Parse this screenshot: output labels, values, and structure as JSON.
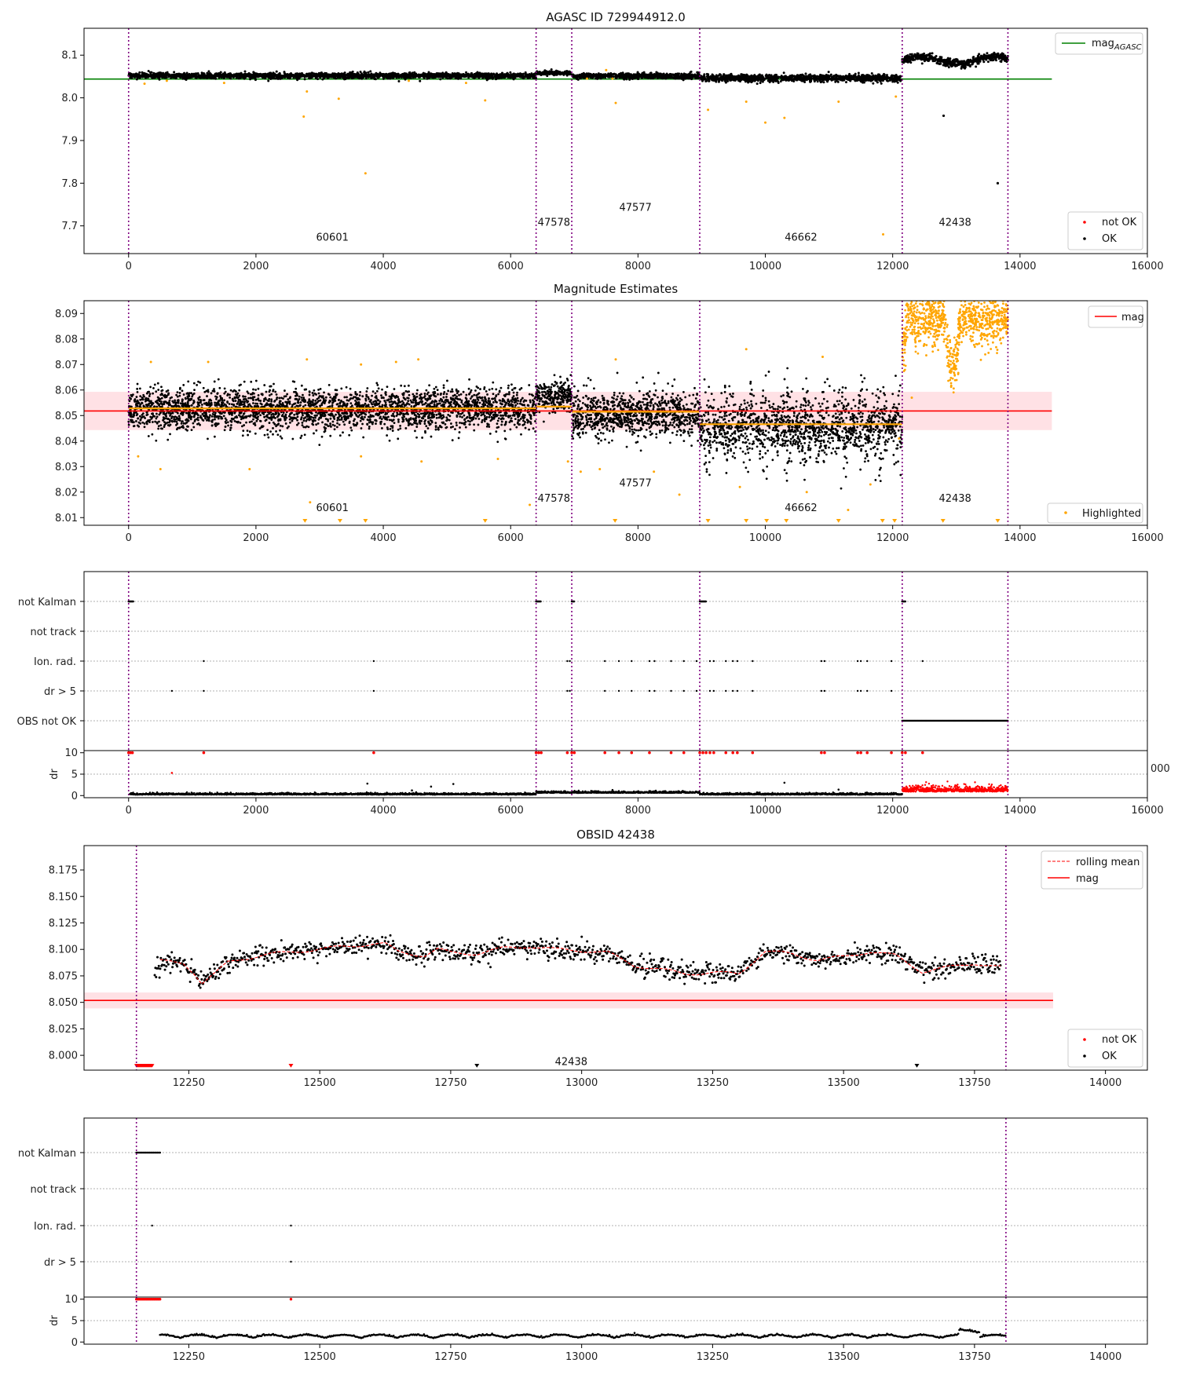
{
  "colors": {
    "ok": "#000000",
    "not_ok": "#ff0000",
    "highlight": "#ffa500",
    "agasc_line": "#008000",
    "mag_line": "#ff0000",
    "mag_band": "#ffc8cf",
    "obs_mean": "#ffa500",
    "boundary": "#800080",
    "rolling_mean": "#ff0000"
  },
  "chart_data": [
    {
      "id": "p1",
      "type": "scatter",
      "title": "AGASC ID 729944912.0",
      "xlim": [
        -700,
        16000
      ],
      "ylim": [
        7.635,
        8.163
      ],
      "xticks": [
        0,
        2000,
        4000,
        6000,
        8000,
        10000,
        12000,
        14000,
        16000
      ],
      "yticks": [
        7.7,
        7.8,
        7.9,
        8.0,
        8.1
      ],
      "ytick_decimals": 1,
      "boundaries": [
        0,
        6400,
        6960,
        8970,
        12150,
        13810
      ],
      "obs_labels": [
        {
          "text": "60601",
          "x": 3200,
          "y": 7.665
        },
        {
          "text": "47578",
          "x": 6680,
          "y": 7.7
        },
        {
          "text": "47577",
          "x": 7960,
          "y": 7.735
        },
        {
          "text": "46662",
          "x": 10560,
          "y": 7.665
        },
        {
          "text": "42438",
          "x": 12980,
          "y": 7.7
        }
      ],
      "reference_line": {
        "name": "mag$_{AGASC}$",
        "label_main": "mag",
        "label_sub": "AGASC",
        "y": 8.044,
        "x": [
          -700,
          14500
        ]
      },
      "segments": [
        {
          "x": [
            0,
            6400
          ],
          "mean": 8.052,
          "spread": 0.007
        },
        {
          "x": [
            6400,
            6960
          ],
          "mean": 8.058,
          "spread": 0.005
        },
        {
          "x": [
            6960,
            8970
          ],
          "mean": 8.051,
          "spread": 0.007
        },
        {
          "x": [
            8970,
            12150
          ],
          "mean": 8.046,
          "spread": 0.009
        },
        {
          "x": [
            12150,
            13810
          ],
          "mean": 8.088,
          "spread": 0.01
        }
      ],
      "highlight_points": [
        [
          250,
          8.033
        ],
        [
          600,
          8.04
        ],
        [
          1500,
          8.035
        ],
        [
          2750,
          7.956
        ],
        [
          2800,
          8.015
        ],
        [
          3300,
          7.998
        ],
        [
          3720,
          7.823
        ],
        [
          4400,
          8.04
        ],
        [
          5300,
          8.035
        ],
        [
          5600,
          7.994
        ],
        [
          7200,
          8.045
        ],
        [
          7500,
          8.065
        ],
        [
          7600,
          8.045
        ],
        [
          7650,
          7.988
        ],
        [
          9100,
          7.972
        ],
        [
          9700,
          7.991
        ],
        [
          10000,
          7.942
        ],
        [
          10300,
          7.953
        ],
        [
          11150,
          7.991
        ],
        [
          11850,
          7.68
        ],
        [
          12050,
          8.003
        ]
      ],
      "ok_outliers": [
        [
          12800,
          7.958
        ],
        [
          13650,
          7.8
        ]
      ],
      "legend": {
        "items": [
          "not OK",
          "OK"
        ]
      }
    },
    {
      "id": "p2",
      "type": "scatter",
      "title": "Magnitude Estimates",
      "xlim": [
        -700,
        16000
      ],
      "ylim": [
        8.007,
        8.095
      ],
      "xticks": [
        0,
        2000,
        4000,
        6000,
        8000,
        10000,
        12000,
        14000,
        16000
      ],
      "yticks": [
        8.01,
        8.02,
        8.03,
        8.04,
        8.05,
        8.06,
        8.07,
        8.08,
        8.09
      ],
      "ytick_decimals": 2,
      "boundaries": [
        0,
        6400,
        6960,
        8970,
        12150,
        13810
      ],
      "obs_labels": [
        {
          "text": "60601",
          "x": 3200,
          "y": 8.0125
        },
        {
          "text": "47578",
          "x": 6680,
          "y": 8.0162
        },
        {
          "text": "47577",
          "x": 7960,
          "y": 8.0223
        },
        {
          "text": "46662",
          "x": 10560,
          "y": 8.0125
        },
        {
          "text": "42438",
          "x": 12980,
          "y": 8.0162
        }
      ],
      "mag_line": {
        "name": "mag",
        "y": 8.0518,
        "band": [
          8.0443,
          8.0593
        ],
        "x": [
          -700,
          14500
        ]
      },
      "obs_means": [
        {
          "x": [
            0,
            6400
          ],
          "y": 8.0528
        },
        {
          "x": [
            6400,
            6960
          ],
          "y": 8.0535
        },
        {
          "x": [
            6960,
            8970
          ],
          "y": 8.0515
        },
        {
          "x": [
            8970,
            12150
          ],
          "y": 8.0466
        }
      ],
      "segments": [
        {
          "x": [
            0,
            6400
          ],
          "mean": 8.0525,
          "spread": 0.0072
        },
        {
          "x": [
            6400,
            6960
          ],
          "mean": 8.0575,
          "spread": 0.0055
        },
        {
          "x": [
            6960,
            8970
          ],
          "mean": 8.0505,
          "spread": 0.0078
        },
        {
          "x": [
            8970,
            12150
          ],
          "mean": 8.0455,
          "spread": 0.0098
        }
      ],
      "highlight_segment": {
        "x": [
          12150,
          13810
        ],
        "mean": 8.088,
        "spread": 0.012
      },
      "highlight_points": [
        [
          350,
          8.071
        ],
        [
          1250,
          8.071
        ],
        [
          2800,
          8.072
        ],
        [
          3650,
          8.07
        ],
        [
          4200,
          8.071
        ],
        [
          4550,
          8.072
        ],
        [
          7650,
          8.072
        ],
        [
          9700,
          8.076
        ],
        [
          10900,
          8.073
        ],
        [
          150,
          8.034
        ],
        [
          500,
          8.029
        ],
        [
          1900,
          8.029
        ],
        [
          2850,
          8.016
        ],
        [
          3650,
          8.034
        ],
        [
          4600,
          8.032
        ],
        [
          5800,
          8.033
        ],
        [
          6300,
          8.015
        ],
        [
          6900,
          8.032
        ],
        [
          7100,
          8.028
        ],
        [
          7400,
          8.029
        ],
        [
          8250,
          8.028
        ],
        [
          8650,
          8.019
        ],
        [
          9600,
          8.022
        ],
        [
          10650,
          8.02
        ],
        [
          11300,
          8.013
        ],
        [
          11650,
          8.023
        ],
        [
          12100,
          8.041
        ],
        [
          12300,
          8.057
        ]
      ],
      "clipped_points": [
        2770,
        3320,
        3720,
        5600,
        7640,
        9100,
        9700,
        10020,
        10330,
        11150,
        11840,
        12030,
        12790,
        13650
      ],
      "legend": {
        "items": [
          "Highlighted"
        ]
      }
    },
    {
      "id": "p3",
      "type": "scatter",
      "xlim": [
        -700,
        16000
      ],
      "categories": [
        "not Kalman",
        "not track",
        "Ion. rad.",
        "dr > 5",
        "OBS not OK"
      ],
      "boundaries": [
        0,
        6400,
        6960,
        8970,
        12150,
        13810
      ],
      "not_kalman": [
        [
          0,
          80
        ],
        [
          6400,
          6480
        ],
        [
          6960,
          7000
        ],
        [
          8970,
          9070
        ],
        [
          12150,
          12200
        ]
      ],
      "ion_rad": [
        1180,
        3850,
        6890,
        6930,
        7480,
        7700,
        7900,
        8180,
        8260,
        8520,
        8720,
        8920,
        9130,
        9190,
        9380,
        9490,
        9560,
        9800,
        10880,
        10930,
        11450,
        11500,
        11600,
        11980,
        12470
      ],
      "dr5": [
        680,
        1180,
        3850,
        6890,
        6930,
        7480,
        7700,
        7900,
        8180,
        8260,
        8520,
        8720,
        8920,
        9130,
        9190,
        9380,
        9490,
        9560,
        9800,
        10880,
        10930,
        11450,
        11500,
        11600,
        11980
      ],
      "obs_not_ok": [
        12150,
        13810
      ],
      "dr": {
        "ylim": [
          -0.5,
          10.5
        ],
        "yticks": [
          0,
          5,
          10
        ],
        "xticks": [
          0,
          2000,
          4000,
          6000,
          8000,
          10000,
          12000,
          14000,
          16000
        ],
        "clipped_red": [
          0,
          30,
          60,
          6400,
          6440,
          6480,
          6960,
          7000,
          1180,
          3850,
          6890,
          7480,
          7700,
          7900,
          8180,
          8520,
          8720,
          8970,
          9020,
          9070,
          9130,
          9190,
          9380,
          9490,
          9560,
          9800,
          10880,
          10930,
          11450,
          11500,
          11600,
          11980,
          12150,
          12200,
          12470
        ],
        "outliers": [
          [
            680,
            5.3
          ],
          [
            3750,
            2.8
          ],
          [
            4450,
            1.2
          ],
          [
            4750,
            2.1
          ],
          [
            5100,
            2.7
          ],
          [
            7600,
            1.3
          ],
          [
            10300,
            3.0
          ],
          [
            11150,
            1.4
          ]
        ],
        "partial_tick_label": "000"
      }
    },
    {
      "id": "p4",
      "type": "line",
      "title": "OBSID 42438",
      "xlim": [
        12050,
        14080
      ],
      "ylim": [
        7.986,
        8.198
      ],
      "xticks": [
        12250,
        12500,
        12750,
        13000,
        13250,
        13500,
        13750,
        14000
      ],
      "yticks": [
        8.0,
        8.025,
        8.05,
        8.075,
        8.1,
        8.125,
        8.15,
        8.175
      ],
      "ytick_decimals": 3,
      "boundaries": [
        12150,
        13810
      ],
      "obs_label": {
        "text": "42438",
        "x": 12980,
        "y": 7.991
      },
      "mag_line": {
        "name": "mag",
        "y": 8.0518,
        "band": [
          8.0443,
          8.0593
        ],
        "x": [
          12050,
          13900
        ]
      },
      "rolling_mean_name": "rolling mean",
      "trend": [
        [
          12195,
          8.089
        ],
        [
          12215,
          8.088
        ],
        [
          12240,
          8.087
        ],
        [
          12260,
          8.078
        ],
        [
          12275,
          8.068
        ],
        [
          12300,
          8.077
        ],
        [
          12325,
          8.088
        ],
        [
          12350,
          8.091
        ],
        [
          12400,
          8.095
        ],
        [
          12450,
          8.098
        ],
        [
          12500,
          8.1
        ],
        [
          12550,
          8.103
        ],
        [
          12600,
          8.105
        ],
        [
          12625,
          8.105
        ],
        [
          12650,
          8.098
        ],
        [
          12700,
          8.094
        ],
        [
          12725,
          8.1
        ],
        [
          12750,
          8.097
        ],
        [
          12800,
          8.096
        ],
        [
          12850,
          8.101
        ],
        [
          12900,
          8.103
        ],
        [
          12950,
          8.1
        ],
        [
          13000,
          8.099
        ],
        [
          13050,
          8.097
        ],
        [
          13100,
          8.085
        ],
        [
          13150,
          8.081
        ],
        [
          13200,
          8.077
        ],
        [
          13250,
          8.078
        ],
        [
          13300,
          8.077
        ],
        [
          13350,
          8.098
        ],
        [
          13400,
          8.096
        ],
        [
          13450,
          8.09
        ],
        [
          13500,
          8.093
        ],
        [
          13550,
          8.098
        ],
        [
          13600,
          8.094
        ],
        [
          13650,
          8.079
        ],
        [
          13700,
          8.083
        ],
        [
          13750,
          8.087
        ],
        [
          13800,
          8.083
        ]
      ],
      "clipped_not_ok": [
        [
          12150,
          12180
        ]
      ],
      "clipped_red_markers": [
        12445
      ],
      "clipped_black_markers": [
        12800,
        13640
      ],
      "legend_top": {
        "items": [
          "rolling mean",
          "mag"
        ]
      },
      "legend_bottom": {
        "items": [
          "not OK",
          "OK"
        ]
      }
    },
    {
      "id": "p5",
      "type": "scatter",
      "xlim": [
        12050,
        14080
      ],
      "categories": [
        "not Kalman",
        "not track",
        "Ion. rad.",
        "dr > 5"
      ],
      "boundaries": [
        12150,
        13810
      ],
      "not_kalman": [
        [
          12150,
          12195
        ]
      ],
      "ion_rad": [
        12180,
        12445
      ],
      "dr5": [
        12445
      ],
      "dr": {
        "ylim": [
          -0.5,
          10.5
        ],
        "yticks": [
          0,
          5,
          10
        ],
        "xticks": [
          12250,
          12500,
          12750,
          13000,
          13250,
          13500,
          13750,
          14000
        ],
        "clipped_red": [
          [
            12150,
            12195
          ],
          [
            12445,
            12445
          ]
        ]
      }
    }
  ]
}
